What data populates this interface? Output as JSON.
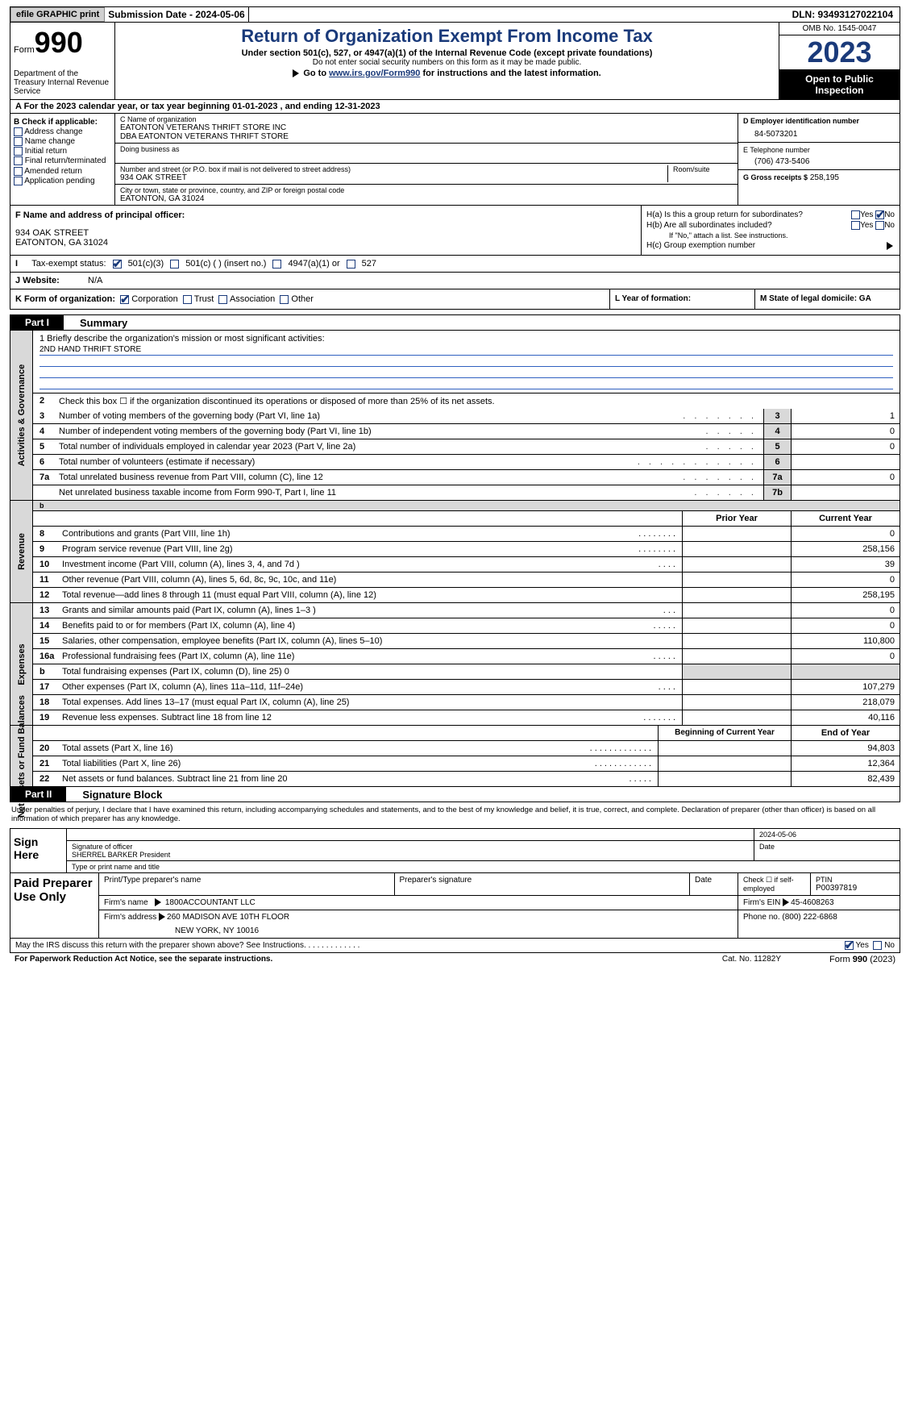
{
  "topbar": {
    "efile_btn": "efile GRAPHIC print",
    "submission_label": "Submission Date - 2024-05-06",
    "dln": "DLN: 93493127022104"
  },
  "header": {
    "form_label": "Form",
    "form_num": "990",
    "dept": "Department of the Treasury Internal Revenue Service",
    "title": "Return of Organization Exempt From Income Tax",
    "subtitle": "Under section 501(c), 527, or 4947(a)(1) of the Internal Revenue Code (except private foundations)",
    "subtitle2": "Do not enter social security numbers on this form as it may be made public.",
    "goto_prefix": "Go to ",
    "goto_link": "www.irs.gov/Form990",
    "goto_suffix": " for instructions and the latest information.",
    "omb": "OMB No. 1545-0047",
    "year": "2023",
    "public": "Open to Public Inspection"
  },
  "row_a": "A For the 2023 calendar year, or tax year beginning 01-01-2023   , and ending 12-31-2023",
  "col_b": {
    "label": "B Check if applicable:",
    "items": [
      "Address change",
      "Name change",
      "Initial return",
      "Final return/terminated",
      "Amended return",
      "Application pending"
    ]
  },
  "col_c": {
    "name_lbl": "C Name of organization",
    "name1": "EATONTON VETERANS THRIFT STORE INC",
    "name2": "DBA EATONTON VETERANS THRIFT STORE",
    "dba_lbl": "Doing business as",
    "addr_lbl": "Number and street (or P.O. box if mail is not delivered to street address)",
    "room_lbl": "Room/suite",
    "addr": "934 OAK STREET",
    "city_lbl": "City or town, state or province, country, and ZIP or foreign postal code",
    "city": "EATONTON, GA  31024"
  },
  "col_de": {
    "d_lbl": "D Employer identification number",
    "d_val": "84-5073201",
    "e_lbl": "E Telephone number",
    "e_val": "(706) 473-5406",
    "g_lbl": "G Gross receipts $",
    "g_val": "258,195"
  },
  "row_f": {
    "lbl": "F  Name and address of principal officer:",
    "line1": "934 OAK STREET",
    "line2": "EATONTON, GA  31024"
  },
  "row_h": {
    "ha": "H(a)  Is this a group return for subordinates?",
    "hb": "H(b)  Are all subordinates included?",
    "hb_note": "If \"No,\" attach a list. See instructions.",
    "hc": "H(c)  Group exemption number",
    "yes": "Yes",
    "no": "No"
  },
  "row_tax": {
    "lbl": "Tax-exempt status:",
    "opt1": "501(c)(3)",
    "opt2": "501(c) (  ) (insert no.)",
    "opt3": "4947(a)(1) or",
    "opt4": "527"
  },
  "row_j": {
    "lbl": "J   Website:",
    "val": "N/A"
  },
  "row_k": {
    "lbl": "K Form of organization:",
    "opts": [
      "Corporation",
      "Trust",
      "Association",
      "Other"
    ]
  },
  "row_l": "L Year of formation:",
  "row_m": "M State of legal domicile: GA",
  "parts": {
    "p1": "Part I",
    "p1_title": "Summary",
    "p2": "Part II",
    "p2_title": "Signature Block"
  },
  "vlabels": {
    "gov": "Activities & Governance",
    "rev": "Revenue",
    "exp": "Expenses",
    "net": "Net Assets or Fund Balances"
  },
  "mission": {
    "lbl": "1   Briefly describe the organization's mission or most significant activities:",
    "txt": "2ND HAND THRIFT STORE"
  },
  "gov_lines": [
    {
      "ln": "2",
      "txt": "Check this box ☐ if the organization discontinued its operations or disposed of more than 25% of its net assets.",
      "box": "",
      "val": ""
    },
    {
      "ln": "3",
      "txt": "Number of voting members of the governing body (Part VI, line 1a)",
      "dots": ". . . . . . .",
      "box": "3",
      "val": "1"
    },
    {
      "ln": "4",
      "txt": "Number of independent voting members of the governing body (Part VI, line 1b)",
      "dots": ". . . . .",
      "box": "4",
      "val": "0"
    },
    {
      "ln": "5",
      "txt": "Total number of individuals employed in calendar year 2023 (Part V, line 2a)",
      "dots": ". . . . .",
      "box": "5",
      "val": "0"
    },
    {
      "ln": "6",
      "txt": "Total number of volunteers (estimate if necessary)",
      "dots": ". . . . . . . . . . .",
      "box": "6",
      "val": ""
    },
    {
      "ln": "7a",
      "txt": "Total unrelated business revenue from Part VIII, column (C), line 12",
      "dots": ". . . . . . .",
      "box": "7a",
      "val": "0"
    },
    {
      "ln": "",
      "txt": "Net unrelated business taxable income from Form 990-T, Part I, line 11",
      "dots": ". . . . . .",
      "box": "7b",
      "val": ""
    }
  ],
  "rev_hdr": {
    "prior": "Prior Year",
    "curr": "Current Year"
  },
  "rev_lines": [
    {
      "ln": "8",
      "txt": "Contributions and grants (Part VIII, line 1h)",
      "dots": ". . . . . . . .",
      "p": "",
      "c": "0"
    },
    {
      "ln": "9",
      "txt": "Program service revenue (Part VIII, line 2g)",
      "dots": ". . . . . . . .",
      "p": "",
      "c": "258,156"
    },
    {
      "ln": "10",
      "txt": "Investment income (Part VIII, column (A), lines 3, 4, and 7d )",
      "dots": ". . . .",
      "p": "",
      "c": "39"
    },
    {
      "ln": "11",
      "txt": "Other revenue (Part VIII, column (A), lines 5, 6d, 8c, 9c, 10c, and 11e)",
      "dots": "",
      "p": "",
      "c": "0"
    },
    {
      "ln": "12",
      "txt": "Total revenue—add lines 8 through 11 (must equal Part VIII, column (A), line 12)",
      "dots": "",
      "p": "",
      "c": "258,195"
    }
  ],
  "exp_lines": [
    {
      "ln": "13",
      "txt": "Grants and similar amounts paid (Part IX, column (A), lines 1–3 )",
      "dots": ". . .",
      "p": "",
      "c": "0"
    },
    {
      "ln": "14",
      "txt": "Benefits paid to or for members (Part IX, column (A), line 4)",
      "dots": ". . . . .",
      "p": "",
      "c": "0"
    },
    {
      "ln": "15",
      "txt": "Salaries, other compensation, employee benefits (Part IX, column (A), lines 5–10)",
      "dots": "",
      "p": "",
      "c": "110,800"
    },
    {
      "ln": "16a",
      "txt": "Professional fundraising fees (Part IX, column (A), line 11e)",
      "dots": ". . . . .",
      "p": "",
      "c": "0"
    },
    {
      "ln": "b",
      "txt": "Total fundraising expenses (Part IX, column (D), line 25) 0",
      "dots": "",
      "p": "grey",
      "c": "grey"
    },
    {
      "ln": "17",
      "txt": "Other expenses (Part IX, column (A), lines 11a–11d, 11f–24e)",
      "dots": ". . . .",
      "p": "",
      "c": "107,279"
    },
    {
      "ln": "18",
      "txt": "Total expenses. Add lines 13–17 (must equal Part IX, column (A), line 25)",
      "dots": "",
      "p": "",
      "c": "218,079"
    },
    {
      "ln": "19",
      "txt": "Revenue less expenses. Subtract line 18 from line 12",
      "dots": ". . . . . . .",
      "p": "",
      "c": "40,116"
    }
  ],
  "net_hdr": {
    "beg": "Beginning of Current Year",
    "end": "End of Year"
  },
  "net_lines": [
    {
      "ln": "20",
      "txt": "Total assets (Part X, line 16)",
      "dots": ". . . . . . . . . . . . .",
      "p": "",
      "c": "94,803"
    },
    {
      "ln": "21",
      "txt": "Total liabilities (Part X, line 26)",
      "dots": ". . . . . . . . . . . .",
      "p": "",
      "c": "12,364"
    },
    {
      "ln": "22",
      "txt": "Net assets or fund balances. Subtract line 21 from line 20",
      "dots": ". . . . .",
      "p": "",
      "c": "82,439"
    }
  ],
  "penalty": "Under penalties of perjury, I declare that I have examined this return, including accompanying schedules and statements, and to the best of my knowledge and belief, it is true, correct, and complete. Declaration of preparer (other than officer) is based on all information of which preparer has any knowledge.",
  "sign": {
    "left": "Sign Here",
    "date": "2024-05-06",
    "sig_lbl": "Signature of officer",
    "name": "SHERREL BARKER  President",
    "type_lbl": "Type or print name and title",
    "date_lbl": "Date"
  },
  "prep": {
    "left": "Paid Preparer Use Only",
    "h1": "Print/Type preparer's name",
    "h2": "Preparer's signature",
    "h3": "Date",
    "h4a": "Check ☐ if self-employed",
    "h4": "PTIN",
    "ptin": "P00397819",
    "firm_lbl": "Firm's name",
    "firm": "1800ACCOUNTANT LLC",
    "ein_lbl": "Firm's EIN",
    "ein": "45-4608263",
    "addr_lbl": "Firm's address",
    "addr1": "260 MADISON AVE 10TH FLOOR",
    "addr2": "NEW YORK, NY  10016",
    "phone_lbl": "Phone no.",
    "phone": "(800) 222-6868"
  },
  "footer": {
    "discuss": "May the IRS discuss this return with the preparer shown above? See Instructions.",
    "dots": ". . . . . . . . . . . .",
    "yes": "Yes",
    "no": "No"
  },
  "bottom": {
    "paperwork": "For Paperwork Reduction Act Notice, see the separate instructions.",
    "cat": "Cat. No. 11282Y",
    "formref": "Form 990 (2023)"
  }
}
